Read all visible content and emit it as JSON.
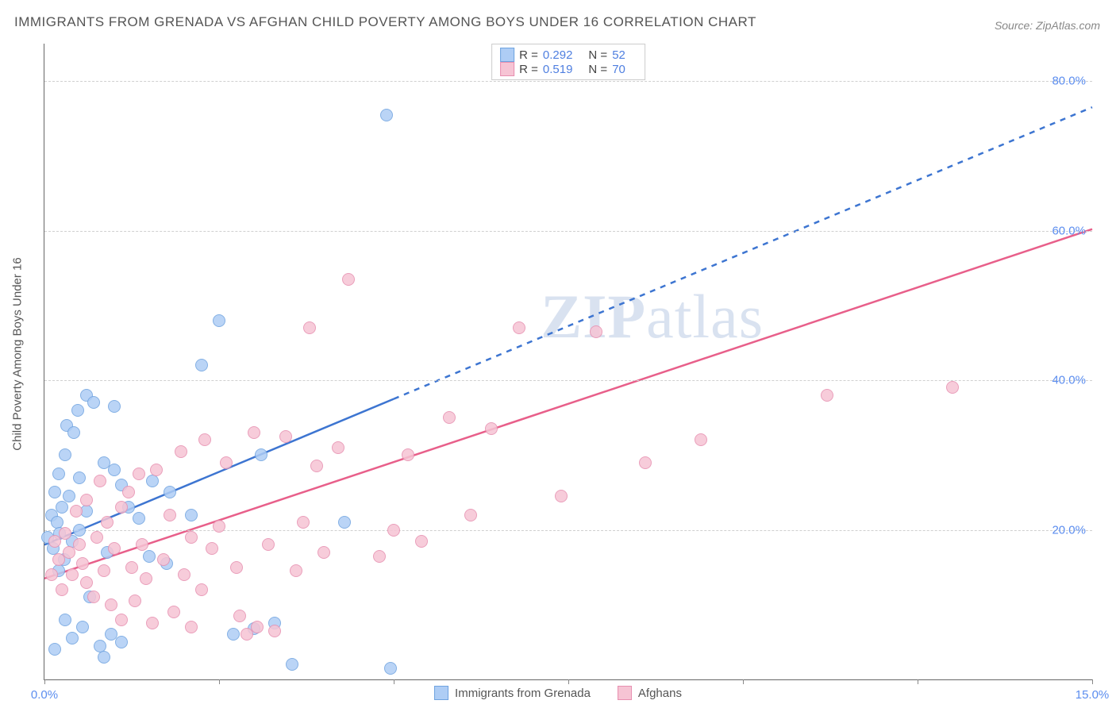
{
  "title": "IMMIGRANTS FROM GRENADA VS AFGHAN CHILD POVERTY AMONG BOYS UNDER 16 CORRELATION CHART",
  "source_prefix": "Source: ",
  "source": "ZipAtlas.com",
  "watermark_a": "ZIP",
  "watermark_b": "atlas",
  "chart": {
    "type": "scatter",
    "background_color": "#ffffff",
    "grid_color": "#d0d0d0",
    "axis_color": "#666666",
    "tick_label_color": "#5b8def",
    "ylabel": "Child Poverty Among Boys Under 16",
    "xlim": [
      0,
      15
    ],
    "ylim": [
      0,
      85
    ],
    "xticks": [
      {
        "pos": 0.0,
        "label": "0.0%"
      },
      {
        "pos": 2.5,
        "label": ""
      },
      {
        "pos": 5.0,
        "label": ""
      },
      {
        "pos": 7.5,
        "label": ""
      },
      {
        "pos": 10.0,
        "label": ""
      },
      {
        "pos": 12.5,
        "label": ""
      },
      {
        "pos": 15.0,
        "label": "15.0%"
      }
    ],
    "yticks": [
      {
        "pos": 20,
        "label": "20.0%"
      },
      {
        "pos": 40,
        "label": "40.0%"
      },
      {
        "pos": 60,
        "label": "60.0%"
      },
      {
        "pos": 80,
        "label": "80.0%"
      }
    ],
    "marker_radius": 8,
    "marker_opacity_fill": 0.3,
    "marker_opacity_stroke": 0.75,
    "trend_line_width": 2.5,
    "legend_top": [
      {
        "swatch_fill": "#aecdf5",
        "swatch_stroke": "#6fa3e0",
        "r": "0.292",
        "n": "52"
      },
      {
        "swatch_fill": "#f6c4d4",
        "swatch_stroke": "#e78fb0",
        "r": "0.519",
        "n": "70"
      }
    ],
    "legend_bottom": [
      {
        "swatch_fill": "#aecdf5",
        "swatch_stroke": "#6fa3e0",
        "label": "Immigrants from Grenada"
      },
      {
        "swatch_fill": "#f6c4d4",
        "swatch_stroke": "#e78fb0",
        "label": "Afghans"
      }
    ],
    "legend_labels": {
      "r": "R =",
      "n": "N ="
    },
    "series": [
      {
        "name": "Immigrants from Grenada",
        "fill": "#aecdf5",
        "stroke": "#6fa3e0",
        "trend_color": "#3d75d1",
        "trend_solid": {
          "x1": 0.0,
          "y1": 18.0,
          "x2": 5.0,
          "y2": 37.5
        },
        "trend_dash": {
          "x1": 5.0,
          "y1": 37.5,
          "x2": 15.0,
          "y2": 76.5
        },
        "points": [
          [
            0.05,
            19.0
          ],
          [
            0.1,
            22.0
          ],
          [
            0.12,
            17.5
          ],
          [
            0.15,
            25.0
          ],
          [
            0.15,
            4.0
          ],
          [
            0.18,
            21.0
          ],
          [
            0.2,
            27.5
          ],
          [
            0.2,
            14.5
          ],
          [
            0.22,
            19.5
          ],
          [
            0.25,
            23.0
          ],
          [
            0.28,
            16.0
          ],
          [
            0.3,
            30.0
          ],
          [
            0.3,
            8.0
          ],
          [
            0.32,
            34.0
          ],
          [
            0.35,
            24.5
          ],
          [
            0.4,
            5.5
          ],
          [
            0.4,
            18.5
          ],
          [
            0.42,
            33.0
          ],
          [
            0.48,
            36.0
          ],
          [
            0.5,
            20.0
          ],
          [
            0.5,
            27.0
          ],
          [
            0.55,
            7.0
          ],
          [
            0.6,
            38.0
          ],
          [
            0.6,
            22.5
          ],
          [
            0.65,
            11.0
          ],
          [
            0.7,
            37.0
          ],
          [
            0.8,
            4.5
          ],
          [
            0.85,
            29.0
          ],
          [
            0.85,
            3.0
          ],
          [
            0.9,
            17.0
          ],
          [
            0.95,
            6.0
          ],
          [
            1.0,
            28.0
          ],
          [
            1.0,
            36.5
          ],
          [
            1.1,
            26.0
          ],
          [
            1.1,
            5.0
          ],
          [
            1.2,
            23.0
          ],
          [
            1.35,
            21.5
          ],
          [
            1.5,
            16.5
          ],
          [
            1.55,
            26.5
          ],
          [
            1.75,
            15.5
          ],
          [
            1.8,
            25.0
          ],
          [
            2.1,
            22.0
          ],
          [
            2.25,
            42.0
          ],
          [
            2.5,
            48.0
          ],
          [
            2.7,
            6.0
          ],
          [
            3.0,
            6.8
          ],
          [
            3.1,
            30.0
          ],
          [
            3.3,
            7.5
          ],
          [
            3.55,
            2.0
          ],
          [
            4.3,
            21.0
          ],
          [
            4.9,
            75.5
          ],
          [
            4.95,
            1.5
          ]
        ]
      },
      {
        "name": "Afghans",
        "fill": "#f6c4d4",
        "stroke": "#e78fb0",
        "trend_color": "#e85f8a",
        "trend_solid": {
          "x1": 0.0,
          "y1": 13.5,
          "x2": 15.0,
          "y2": 60.2
        },
        "trend_dash": null,
        "points": [
          [
            0.1,
            14.0
          ],
          [
            0.15,
            18.5
          ],
          [
            0.2,
            16.0
          ],
          [
            0.25,
            12.0
          ],
          [
            0.3,
            19.5
          ],
          [
            0.35,
            17.0
          ],
          [
            0.4,
            14.0
          ],
          [
            0.45,
            22.5
          ],
          [
            0.5,
            18.0
          ],
          [
            0.55,
            15.5
          ],
          [
            0.6,
            13.0
          ],
          [
            0.6,
            24.0
          ],
          [
            0.7,
            11.0
          ],
          [
            0.75,
            19.0
          ],
          [
            0.8,
            26.5
          ],
          [
            0.85,
            14.5
          ],
          [
            0.9,
            21.0
          ],
          [
            0.95,
            10.0
          ],
          [
            1.0,
            17.5
          ],
          [
            1.1,
            23.0
          ],
          [
            1.1,
            8.0
          ],
          [
            1.2,
            25.0
          ],
          [
            1.25,
            15.0
          ],
          [
            1.3,
            10.5
          ],
          [
            1.35,
            27.5
          ],
          [
            1.4,
            18.0
          ],
          [
            1.45,
            13.5
          ],
          [
            1.55,
            7.5
          ],
          [
            1.6,
            28.0
          ],
          [
            1.7,
            16.0
          ],
          [
            1.8,
            22.0
          ],
          [
            1.85,
            9.0
          ],
          [
            1.95,
            30.5
          ],
          [
            2.0,
            14.0
          ],
          [
            2.1,
            19.0
          ],
          [
            2.1,
            7.0
          ],
          [
            2.25,
            12.0
          ],
          [
            2.3,
            32.0
          ],
          [
            2.4,
            17.5
          ],
          [
            2.5,
            20.5
          ],
          [
            2.6,
            29.0
          ],
          [
            2.75,
            15.0
          ],
          [
            2.8,
            8.5
          ],
          [
            2.9,
            6.0
          ],
          [
            3.0,
            33.0
          ],
          [
            3.05,
            7.0
          ],
          [
            3.2,
            18.0
          ],
          [
            3.3,
            6.5
          ],
          [
            3.45,
            32.5
          ],
          [
            3.6,
            14.5
          ],
          [
            3.7,
            21.0
          ],
          [
            3.8,
            47.0
          ],
          [
            3.9,
            28.5
          ],
          [
            4.0,
            17.0
          ],
          [
            4.2,
            31.0
          ],
          [
            4.35,
            53.5
          ],
          [
            4.8,
            16.5
          ],
          [
            5.0,
            20.0
          ],
          [
            5.2,
            30.0
          ],
          [
            5.4,
            18.5
          ],
          [
            5.8,
            35.0
          ],
          [
            6.1,
            22.0
          ],
          [
            6.4,
            33.5
          ],
          [
            6.8,
            47.0
          ],
          [
            7.4,
            24.5
          ],
          [
            7.9,
            46.5
          ],
          [
            8.6,
            29.0
          ],
          [
            9.4,
            32.0
          ],
          [
            11.2,
            38.0
          ],
          [
            13.0,
            39.0
          ]
        ]
      }
    ]
  }
}
